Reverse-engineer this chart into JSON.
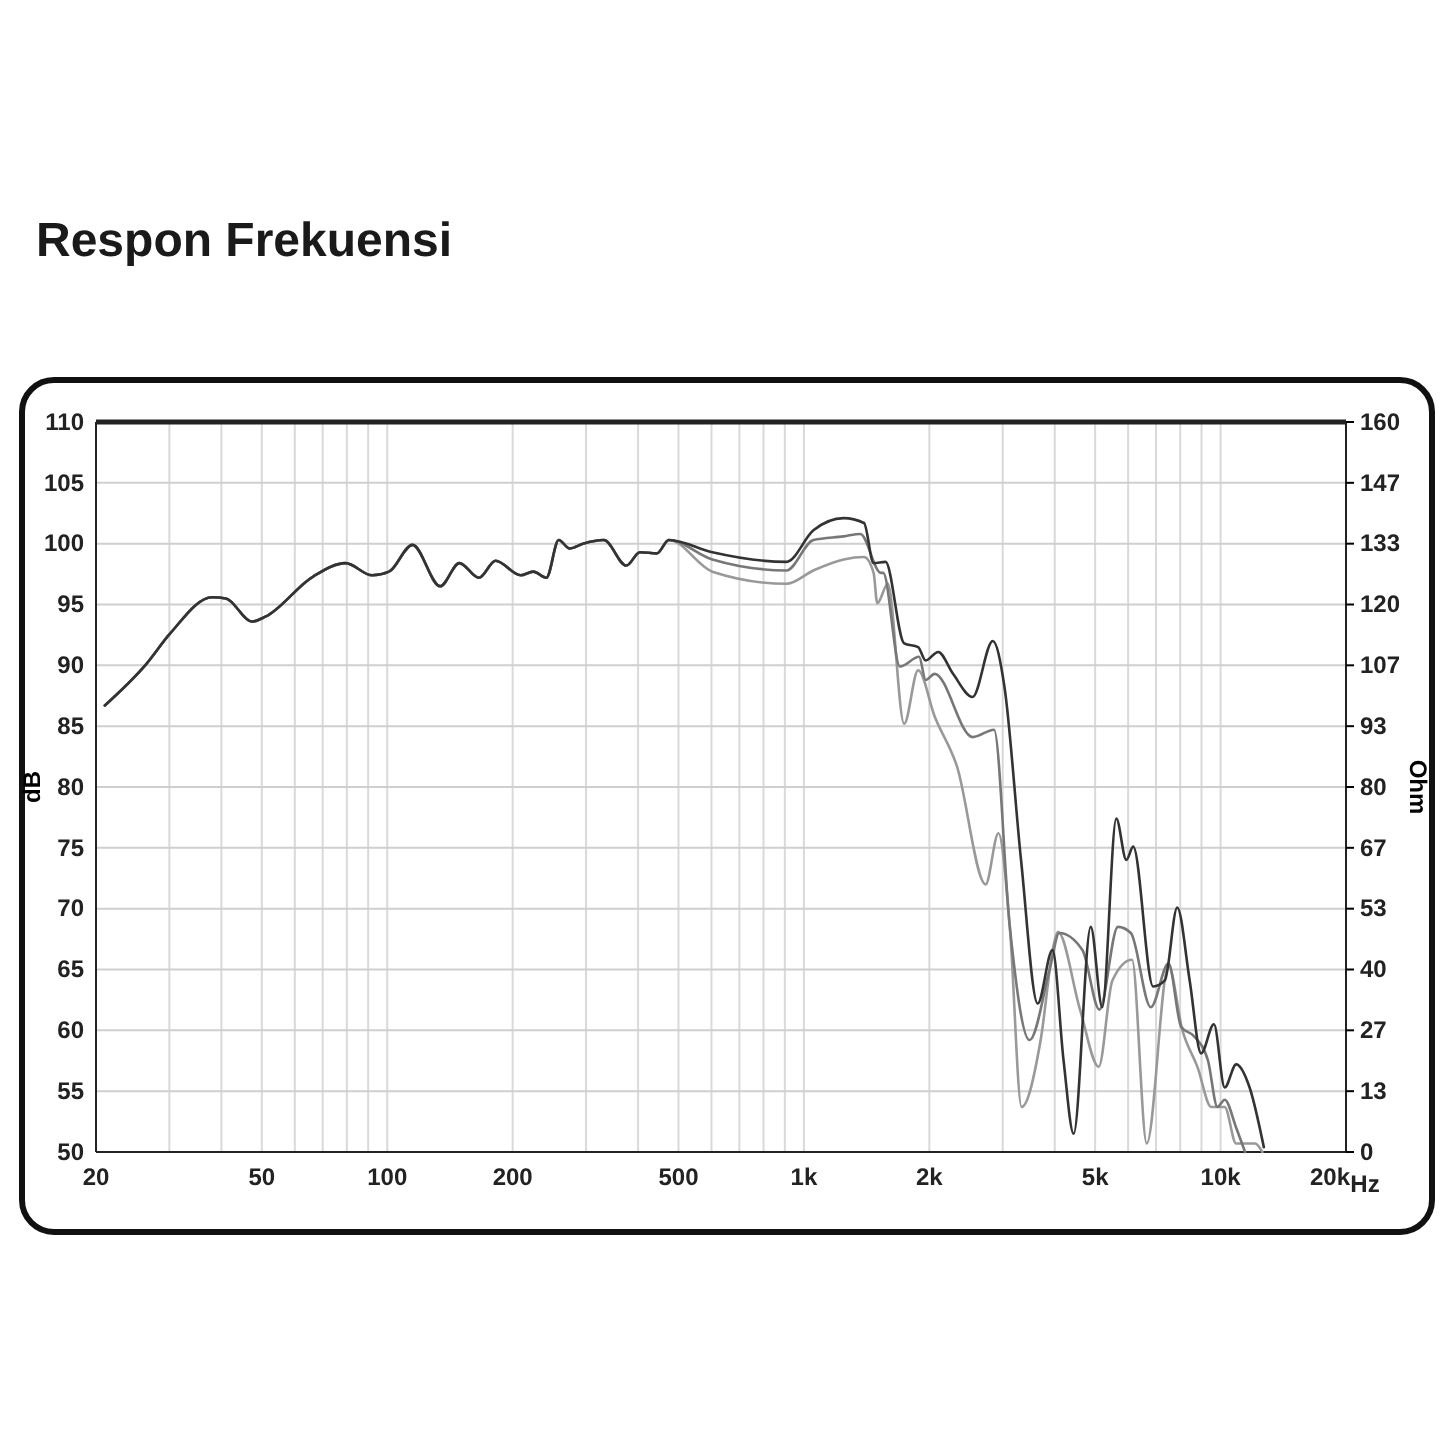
{
  "chart_data": {
    "type": "line",
    "title": "Respon Frekuensi",
    "xlabel": "Hz",
    "ylabel": "dB",
    "y2label": "Ohm",
    "log": "x",
    "grid": true,
    "marker": "none",
    "line_style": "solid",
    "xlim": [
      20,
      20000
    ],
    "xticks": [
      {
        "value": 20,
        "label": "20"
      },
      {
        "value": 30,
        "label": null
      },
      {
        "value": 40,
        "label": null
      },
      {
        "value": 50,
        "label": "50"
      },
      {
        "value": 60,
        "label": null
      },
      {
        "value": 70,
        "label": null
      },
      {
        "value": 80,
        "label": null
      },
      {
        "value": 90,
        "label": null
      },
      {
        "value": 100,
        "label": "100"
      },
      {
        "value": 200,
        "label": "200"
      },
      {
        "value": 300,
        "label": null
      },
      {
        "value": 400,
        "label": null
      },
      {
        "value": 500,
        "label": "500"
      },
      {
        "value": 600,
        "label": null
      },
      {
        "value": 700,
        "label": null
      },
      {
        "value": 800,
        "label": null
      },
      {
        "value": 900,
        "label": null
      },
      {
        "value": 1000,
        "label": "1k"
      },
      {
        "value": 2000,
        "label": "2k"
      },
      {
        "value": 3000,
        "label": null
      },
      {
        "value": 4000,
        "label": null
      },
      {
        "value": 5000,
        "label": "5k"
      },
      {
        "value": 6000,
        "label": null
      },
      {
        "value": 7000,
        "label": null
      },
      {
        "value": 8000,
        "label": null
      },
      {
        "value": 9000,
        "label": null
      },
      {
        "value": 10000,
        "label": "10k"
      },
      {
        "value": 20000,
        "label": "20k"
      }
    ],
    "ylim": [
      50,
      110
    ],
    "yticks": [
      50,
      55,
      60,
      65,
      70,
      75,
      80,
      85,
      90,
      95,
      100,
      105,
      110
    ],
    "y2lim": [
      0,
      160
    ],
    "y2ticks": [
      0,
      {
        "value": 13.33,
        "label": "13"
      },
      {
        "value": 26.67,
        "label": "27"
      },
      40,
      {
        "value": 53.33,
        "label": "53"
      },
      {
        "value": 66.67,
        "label": "67"
      },
      80,
      {
        "value": 93.33,
        "label": "93"
      },
      {
        "value": 106.67,
        "label": "107"
      },
      120,
      {
        "value": 133.33,
        "label": "133"
      },
      {
        "value": 146.67,
        "label": "147"
      },
      160
    ],
    "series": [
      {
        "color": "#999999",
        "x": [
          21,
          26.4,
          30.1,
          38,
          41,
          47.4,
          51,
          66.4,
          79.4,
          92,
          101,
          115,
          134,
          149,
          166,
          182,
          209,
          224,
          241,
          258,
          274,
          295,
          331,
          375,
          404,
          444,
          474,
          603,
          908,
          1054,
          1246,
          1394,
          1470,
          1500,
          1590,
          1740,
          1880,
          2060,
          2330,
          2730,
          2930,
          3120,
          3330,
          3700,
          3980,
          4070,
          4600,
          5100,
          5500,
          6130,
          6650,
          7500,
          8100,
          8800,
          9500,
          10230,
          10900,
          12100,
          12600
        ],
        "values": [
          86.7,
          90.1,
          92.6,
          95.6,
          95.5,
          93.6,
          94,
          97.3,
          98.4,
          97.4,
          97.7,
          99.9,
          96.5,
          98.4,
          97.2,
          98.6,
          97.4,
          97.7,
          97.2,
          100.3,
          99.6,
          100,
          100.3,
          98.2,
          99.3,
          99.2,
          100.3,
          97.7,
          96.7,
          97.8,
          98.7,
          98.9,
          97.6,
          95.1,
          96.7,
          85.2,
          89.6,
          85.8,
          81.7,
          72,
          76.2,
          68.5,
          53.7,
          59.2,
          67.1,
          68.1,
          61.7,
          57,
          64.1,
          65.8,
          50.7,
          65.3,
          60,
          57,
          53.7,
          53.7,
          50.7,
          50.7,
          50
        ]
      },
      {
        "color": "#777777",
        "x": [
          21,
          26.4,
          30.1,
          38,
          41,
          47.4,
          51,
          66.4,
          79.4,
          92,
          101,
          115,
          134,
          149,
          166,
          182,
          209,
          224,
          241,
          258,
          274,
          295,
          331,
          375,
          404,
          444,
          474,
          603,
          908,
          1054,
          1246,
          1366,
          1530,
          1550,
          1700,
          1890,
          1960,
          2060,
          2540,
          2860,
          3120,
          3480,
          3900,
          4100,
          4660,
          5120,
          5670,
          6090,
          6800,
          7500,
          8040,
          8640,
          9330,
          9830,
          10230,
          10900,
          11450
        ],
        "values": [
          86.7,
          90.1,
          92.6,
          95.6,
          95.5,
          93.6,
          94,
          97.3,
          98.4,
          97.4,
          97.7,
          99.9,
          96.5,
          98.4,
          97.2,
          98.6,
          97.4,
          97.7,
          97.2,
          100.3,
          99.6,
          100,
          100.3,
          98.2,
          99.3,
          99.2,
          100.3,
          98.7,
          97.8,
          100.3,
          100.6,
          100.8,
          97.6,
          97.6,
          89.9,
          90.7,
          88.8,
          89.3,
          84.1,
          84.7,
          68.5,
          59.2,
          65.2,
          68,
          66.6,
          61.7,
          68.5,
          68,
          61.9,
          65.5,
          60.3,
          59.5,
          57.5,
          53.7,
          54.3,
          52,
          50
        ]
      },
      {
        "color": "#333333",
        "x": [
          21,
          26.4,
          30.1,
          38,
          41,
          47.4,
          51,
          66.4,
          79.4,
          92,
          101,
          115,
          134,
          149,
          166,
          182,
          209,
          224,
          241,
          258,
          274,
          295,
          331,
          375,
          404,
          444,
          474,
          603,
          908,
          1054,
          1246,
          1394,
          1470,
          1570,
          1740,
          1880,
          1960,
          2100,
          2280,
          2540,
          2840,
          3030,
          3320,
          3640,
          3950,
          4200,
          4440,
          4880,
          5200,
          5620,
          5940,
          6170,
          6890,
          7350,
          7870,
          8430,
          8980,
          9640,
          10230,
          10900,
          11740,
          12700
        ],
        "values": [
          86.7,
          90.1,
          92.6,
          95.6,
          95.5,
          93.6,
          94,
          97.3,
          98.4,
          97.4,
          97.7,
          99.9,
          96.5,
          98.4,
          97.2,
          98.6,
          97.4,
          97.7,
          97.2,
          100.3,
          99.6,
          100,
          100.3,
          98.2,
          99.3,
          99.2,
          100.3,
          99.3,
          98.5,
          101.1,
          102.1,
          101.7,
          98.4,
          98.5,
          91.8,
          91.5,
          90.4,
          91.1,
          89.3,
          87.4,
          92,
          88.2,
          74,
          62.2,
          66.6,
          57.5,
          51.5,
          68.5,
          61.9,
          77.4,
          74,
          75.1,
          63.6,
          64.1,
          70.1,
          64.1,
          58.1,
          60.5,
          55.3,
          57.2,
          55.3,
          50.4
        ]
      }
    ]
  }
}
